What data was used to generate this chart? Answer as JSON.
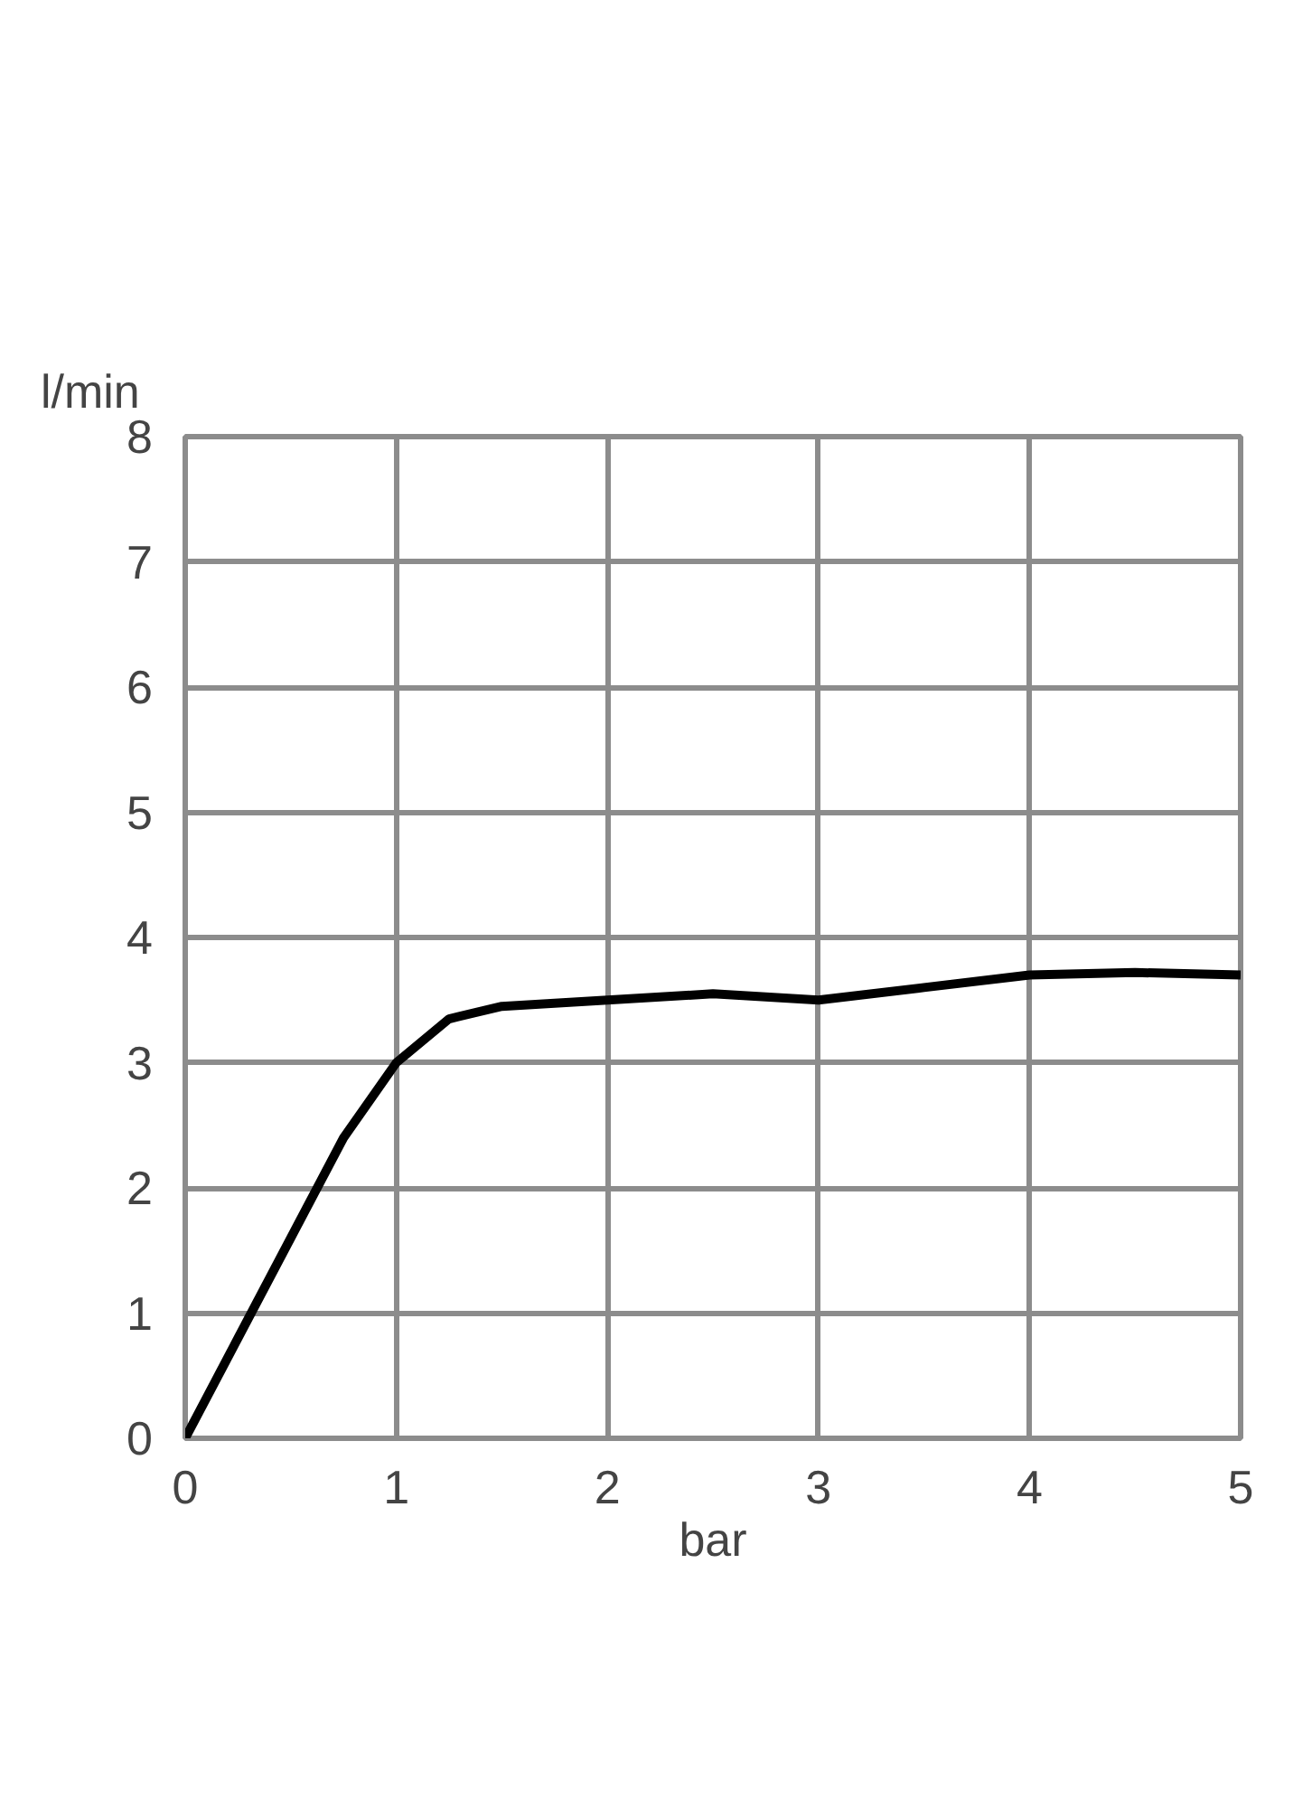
{
  "chart_data": {
    "type": "line",
    "xlabel": "bar",
    "ylabel": "l/min",
    "x": [
      0,
      0.25,
      0.5,
      0.75,
      1,
      1.25,
      1.5,
      2,
      2.5,
      3,
      3.5,
      4,
      4.5,
      5
    ],
    "series": [
      {
        "color": "#000000",
        "values": [
          0,
          0.8,
          1.6,
          2.4,
          3.0,
          3.35,
          3.45,
          3.5,
          3.55,
          3.5,
          3.6,
          3.7,
          3.72,
          3.7
        ]
      }
    ],
    "xlim": [
      0,
      5
    ],
    "ylim": [
      0,
      8
    ],
    "xticks": [
      0,
      1,
      2,
      3,
      4,
      5
    ],
    "yticks": [
      0,
      1,
      2,
      3,
      4,
      5,
      6,
      7,
      8
    ],
    "grid": true,
    "line_style": "solid",
    "marker": "none"
  }
}
